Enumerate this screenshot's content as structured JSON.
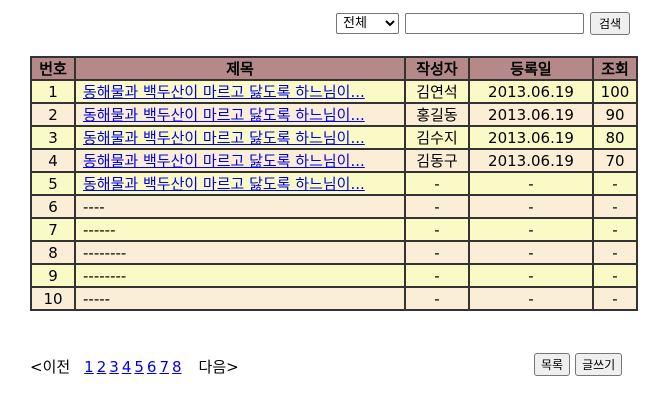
{
  "search": {
    "select_value": "전체",
    "select_options": [
      "전체"
    ],
    "input_value": "",
    "button_label": "검색"
  },
  "table": {
    "headers": [
      "번호",
      "제목",
      "작성자",
      "등록일",
      "조회"
    ],
    "rows": [
      {
        "no": "1",
        "title": "동해물과 백두산이 마르고 닳도록 하느님이...",
        "author": "김연석",
        "date": "2013.06.19",
        "views": "100",
        "highlight": true,
        "link": true
      },
      {
        "no": "2",
        "title": "동해물과 백두산이 마르고 닳도록 하느님이...",
        "author": "홍길동",
        "date": "2013.06.19",
        "views": "90",
        "highlight": false,
        "link": true
      },
      {
        "no": "3",
        "title": "동해물과 백두산이 마르고 닳도록 하느님이...",
        "author": "김수지",
        "date": "2013.06.19",
        "views": "80",
        "highlight": true,
        "link": true
      },
      {
        "no": "4",
        "title": "동해물과 백두산이 마르고 닳도록 하느님이...",
        "author": "김동구",
        "date": "2013.06.19",
        "views": "70",
        "highlight": false,
        "link": true
      },
      {
        "no": "5",
        "title": "동해물과 백두산이 마르고 닳도록 하느님이...",
        "author": "-",
        "date": "-",
        "views": "-",
        "highlight": true,
        "link": true
      },
      {
        "no": "6",
        "title": "----",
        "author": "-",
        "date": "-",
        "views": "-",
        "highlight": false,
        "link": false
      },
      {
        "no": "7",
        "title": "------",
        "author": "-",
        "date": "-",
        "views": "-",
        "highlight": true,
        "link": false
      },
      {
        "no": "8",
        "title": "--------",
        "author": "-",
        "date": "-",
        "views": "-",
        "highlight": false,
        "link": false
      },
      {
        "no": "9",
        "title": "--------",
        "author": "-",
        "date": "-",
        "views": "-",
        "highlight": true,
        "link": false
      },
      {
        "no": "10",
        "title": "-----",
        "author": "-",
        "date": "-",
        "views": "-",
        "highlight": false,
        "link": false
      }
    ]
  },
  "pagination": {
    "prev_label": "<이전",
    "pages": [
      "1",
      "2",
      "3",
      "4",
      "5",
      "6",
      "7",
      "8"
    ],
    "next_label": "다음>"
  },
  "actions": {
    "list_label": "목록",
    "write_label": "글쓰기"
  },
  "colors": {
    "header_bg": "#b58989",
    "row_highlight": "#fafac6",
    "row_plain": "#fbeed6",
    "link": "#0000ee"
  }
}
